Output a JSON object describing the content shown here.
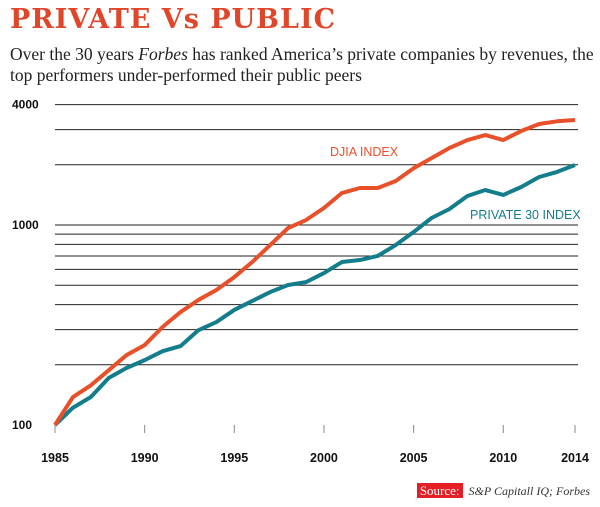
{
  "chart_data": {
    "type": "line",
    "title": "PRIVATE Vs PUBLIC",
    "subtitle_parts": [
      "Over the 30 years ",
      "Forbes",
      " has ranked America’s private companies by revenues, the top performers under-performed their public peers"
    ],
    "yscale": "log",
    "ylim": [
      100,
      4000
    ],
    "ytick_labels": [
      "100",
      "1000",
      "4000"
    ],
    "gridlines": [
      200,
      300,
      400,
      500,
      600,
      700,
      800,
      900,
      1000,
      2000,
      3000,
      4000
    ],
    "x": [
      1985,
      1986,
      1987,
      1988,
      1989,
      1990,
      1991,
      1992,
      1993,
      1994,
      1995,
      1996,
      1997,
      1998,
      1999,
      2000,
      2001,
      2002,
      2003,
      2004,
      2005,
      2006,
      2007,
      2008,
      2009,
      2010,
      2011,
      2012,
      2013,
      2014
    ],
    "xtick_labels": [
      "1985",
      "1990",
      "1995",
      "2000",
      "2005",
      "2010",
      "2014"
    ],
    "xticks": [
      1985,
      1990,
      1995,
      2000,
      2005,
      2010,
      2014
    ],
    "series": [
      {
        "name": "DJIA INDEX",
        "color": "#e8502a",
        "values": [
          100,
          138,
          158,
          188,
          224,
          251,
          309,
          367,
          422,
          473,
          549,
          653,
          794,
          966,
          1059,
          1216,
          1445,
          1531,
          1531,
          1660,
          1923,
          2160,
          2427,
          2660,
          2818,
          2660,
          2950,
          3200,
          3300,
          3350
        ]
      },
      {
        "name": "PRIVATE 30 INDEX",
        "color": "#137d8c",
        "values": [
          100,
          122,
          138,
          172,
          193,
          211,
          234,
          248,
          298,
          327,
          376,
          417,
          462,
          501,
          518,
          575,
          653,
          668,
          700,
          794,
          922,
          1084,
          1202,
          1396,
          1496,
          1413,
          1549,
          1738,
          1843,
          1995
        ]
      }
    ],
    "source_label": "Source:",
    "source_text": "S&P Capitall IQ; Forbes"
  }
}
